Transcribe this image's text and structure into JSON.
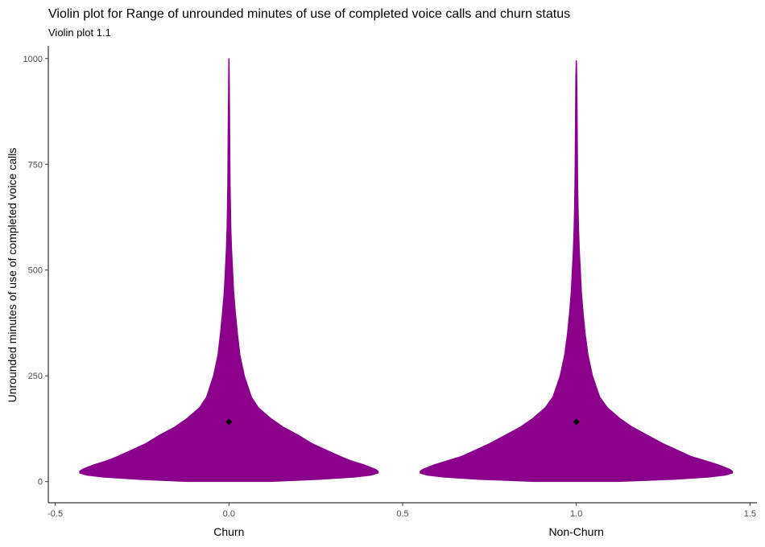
{
  "chart_data": {
    "type": "violin",
    "title": "Violin plot for Range of unrounded minutes of use of completed voice calls and churn status",
    "subtitle": "Violin plot 1.1",
    "xlabel": "",
    "ylabel": "Unrounded minutes of use of completed voice calls",
    "xlim": [
      -0.52,
      1.52
    ],
    "ylim": [
      -50,
      1030
    ],
    "x_ticks": [
      -0.5,
      0.0,
      0.5,
      1.0,
      1.5
    ],
    "x_tick_labels": [
      "-0.5",
      "0.0",
      "0.5",
      "1.0",
      "1.5"
    ],
    "y_ticks": [
      0,
      250,
      500,
      750,
      1000
    ],
    "y_tick_labels": [
      "0",
      "250",
      "500",
      "750",
      "1000"
    ],
    "grid": false,
    "fill_color": "#8B008B",
    "mean_marker_color": "#000000",
    "categories": [
      {
        "label": "Churn",
        "x": 0.0,
        "mean": 141,
        "max": 1000,
        "half_width_profile": [
          [
            0,
            0.12
          ],
          [
            5,
            0.26
          ],
          [
            10,
            0.36
          ],
          [
            15,
            0.41
          ],
          [
            20,
            0.43
          ],
          [
            25,
            0.43
          ],
          [
            30,
            0.42
          ],
          [
            40,
            0.39
          ],
          [
            50,
            0.35
          ],
          [
            60,
            0.32
          ],
          [
            75,
            0.28
          ],
          [
            90,
            0.24
          ],
          [
            110,
            0.2
          ],
          [
            130,
            0.155
          ],
          [
            150,
            0.12
          ],
          [
            175,
            0.085
          ],
          [
            200,
            0.065
          ],
          [
            250,
            0.045
          ],
          [
            300,
            0.032
          ],
          [
            350,
            0.025
          ],
          [
            400,
            0.019
          ],
          [
            450,
            0.014
          ],
          [
            500,
            0.011
          ],
          [
            550,
            0.008
          ],
          [
            600,
            0.006
          ],
          [
            650,
            0.005
          ],
          [
            700,
            0.004
          ],
          [
            750,
            0.0035
          ],
          [
            800,
            0.003
          ],
          [
            850,
            0.0025
          ],
          [
            900,
            0.002
          ],
          [
            950,
            0.0015
          ],
          [
            1000,
            0.001
          ]
        ]
      },
      {
        "label": "Non-Churn",
        "x": 1.0,
        "mean": 141,
        "max": 995,
        "half_width_profile": [
          [
            0,
            0.12
          ],
          [
            5,
            0.28
          ],
          [
            10,
            0.38
          ],
          [
            15,
            0.43
          ],
          [
            20,
            0.45
          ],
          [
            25,
            0.45
          ],
          [
            30,
            0.44
          ],
          [
            40,
            0.41
          ],
          [
            50,
            0.37
          ],
          [
            60,
            0.33
          ],
          [
            75,
            0.29
          ],
          [
            90,
            0.25
          ],
          [
            110,
            0.205
          ],
          [
            130,
            0.16
          ],
          [
            150,
            0.125
          ],
          [
            175,
            0.09
          ],
          [
            200,
            0.068
          ],
          [
            250,
            0.047
          ],
          [
            300,
            0.034
          ],
          [
            350,
            0.026
          ],
          [
            400,
            0.02
          ],
          [
            450,
            0.015
          ],
          [
            500,
            0.012
          ],
          [
            550,
            0.009
          ],
          [
            600,
            0.007
          ],
          [
            650,
            0.0055
          ],
          [
            700,
            0.0045
          ],
          [
            750,
            0.004
          ],
          [
            800,
            0.0035
          ],
          [
            850,
            0.003
          ],
          [
            900,
            0.0025
          ],
          [
            950,
            0.002
          ],
          [
            995,
            0.001
          ]
        ]
      }
    ]
  }
}
